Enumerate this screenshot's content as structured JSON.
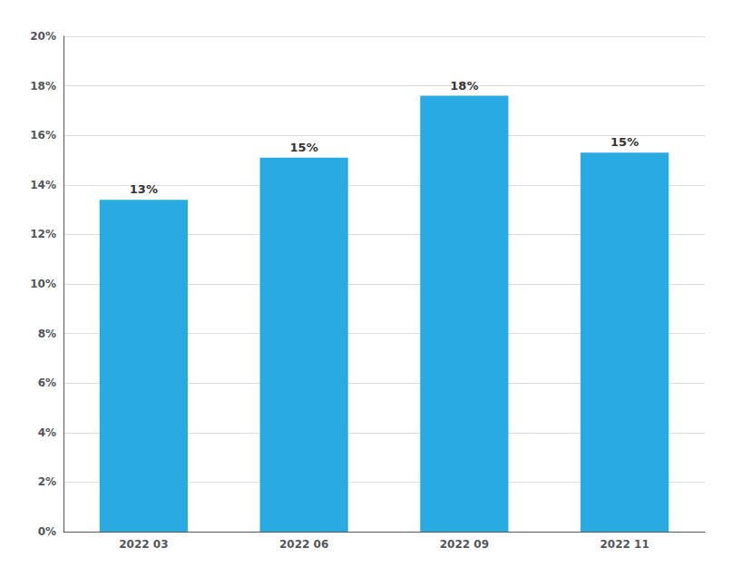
{
  "chart_data": {
    "type": "bar",
    "categories": [
      "2022 03",
      "2022 06",
      "2022 09",
      "2022 11"
    ],
    "values": [
      0.134,
      0.151,
      0.176,
      0.153
    ],
    "value_labels": [
      "13%",
      "15%",
      "18%",
      "15%"
    ],
    "data_labels": true,
    "color": "#29ABE2",
    "ylim": [
      0,
      0.2
    ],
    "yticks": [
      {
        "value": 0.0,
        "label": "0%"
      },
      {
        "value": 0.02,
        "label": "2%"
      },
      {
        "value": 0.04,
        "label": "4%"
      },
      {
        "value": 0.06,
        "label": "6%"
      },
      {
        "value": 0.08,
        "label": "8%"
      },
      {
        "value": 0.1,
        "label": "10%"
      },
      {
        "value": 0.12,
        "label": "12%"
      },
      {
        "value": 0.14,
        "label": "14%"
      },
      {
        "value": 0.16,
        "label": "16%"
      },
      {
        "value": 0.18,
        "label": "18%"
      },
      {
        "value": 0.2,
        "label": "20%"
      }
    ],
    "grid": true
  }
}
